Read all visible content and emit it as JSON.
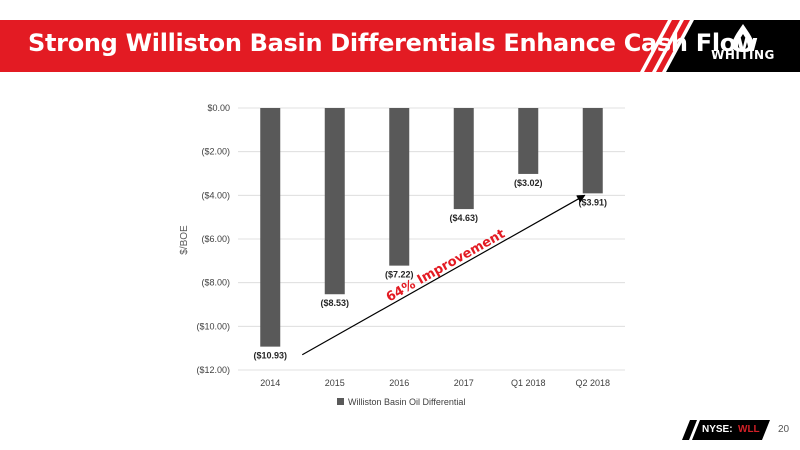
{
  "header": {
    "title": "Strong Williston Basin Differentials Enhance Cash Flow",
    "logo_text": "WHITING"
  },
  "footer": {
    "ticker_label": "NYSE:",
    "ticker_symbol": "WLL",
    "page_number": "20"
  },
  "colors": {
    "brand_red": "#e31b23",
    "bar": "#595959",
    "arrow": "#000000",
    "annotation": "#e31b23"
  },
  "chart_data": {
    "type": "bar",
    "categories": [
      "2014",
      "2015",
      "2016",
      "2017",
      "Q1 2018",
      "Q2 2018"
    ],
    "series": [
      {
        "name": "Williston Basin Oil Differential",
        "values": [
          -10.93,
          -8.53,
          -7.22,
          -4.63,
          -3.02,
          -3.91
        ]
      }
    ],
    "data_labels": [
      "($10.93)",
      "($8.53)",
      "($7.22)",
      "($4.63)",
      "($3.02)",
      "($3.91)"
    ],
    "ylabel": "$/BOE",
    "ylim": [
      -12,
      0
    ],
    "yticks": [
      0,
      -2,
      -4,
      -6,
      -8,
      -10,
      -12
    ],
    "ytick_labels": [
      "$0.00",
      "($2.00)",
      "($4.00)",
      "($6.00)",
      "($8.00)",
      "($10.00)",
      "($12.00)"
    ],
    "grid": true,
    "legend": "bottom",
    "annotation": {
      "text": "64% Improvement",
      "arrow_from": {
        "category": "2014",
        "value": -11.3
      },
      "arrow_to": {
        "category": "Q2 2018",
        "value": -4.0
      }
    }
  }
}
